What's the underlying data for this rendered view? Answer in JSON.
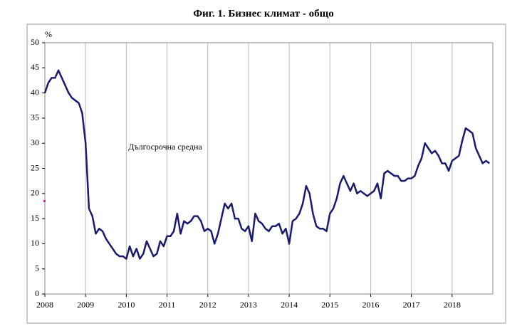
{
  "chart_data": {
    "type": "line",
    "title": "Фиг. 1. Бизнес климат - общо",
    "y_label": "%",
    "annotation": "Дългосрочна средна",
    "average": 18.5,
    "average_color": "#e0208a",
    "categories": [
      "2008",
      null,
      null,
      null,
      null,
      null,
      null,
      null,
      null,
      null,
      null,
      null,
      "2009",
      null,
      null,
      null,
      null,
      null,
      null,
      null,
      null,
      null,
      null,
      null,
      "2010",
      null,
      null,
      null,
      null,
      null,
      null,
      null,
      null,
      null,
      null,
      null,
      "2011",
      null,
      null,
      null,
      null,
      null,
      null,
      null,
      null,
      null,
      null,
      null,
      "2012",
      null,
      null,
      null,
      null,
      null,
      null,
      null,
      null,
      null,
      null,
      null,
      "2013",
      null,
      null,
      null,
      null,
      null,
      null,
      null,
      null,
      null,
      null,
      null,
      "2014",
      null,
      null,
      null,
      null,
      null,
      null,
      null,
      null,
      null,
      null,
      null,
      "2015",
      null,
      null,
      null,
      null,
      null,
      null,
      null,
      null,
      null,
      null,
      null,
      "2016",
      null,
      null,
      null,
      null,
      null,
      null,
      null,
      null,
      null,
      null,
      null,
      "2017",
      null,
      null,
      null,
      null,
      null,
      null,
      null,
      null,
      null,
      null,
      null,
      "2018",
      null,
      null,
      null,
      null,
      null,
      null,
      null,
      null,
      null,
      null,
      null
    ],
    "series": [
      {
        "color": "#1a1a6e",
        "values": [
          40,
          42,
          43,
          43,
          44.5,
          43,
          41.5,
          40,
          39,
          38.5,
          38,
          36,
          30,
          17,
          15.5,
          12,
          13,
          12.5,
          11,
          10,
          9,
          8,
          7.5,
          7.5,
          7,
          9.5,
          7.5,
          9,
          7,
          8,
          10.5,
          9,
          7.5,
          8,
          10.5,
          9.5,
          11.5,
          11.5,
          12.5,
          16,
          12,
          14.5,
          14,
          14.5,
          15.5,
          15.5,
          14.5,
          12.5,
          13,
          12.5,
          10,
          12,
          15,
          18,
          17,
          18,
          15,
          15,
          13,
          12.5,
          13.5,
          10.5,
          16,
          14.5,
          14,
          13,
          12.5,
          13.5,
          13.5,
          14,
          12,
          13,
          10,
          14.5,
          15,
          16,
          18,
          21.5,
          20,
          16,
          13.5,
          13,
          13,
          12.5,
          16,
          17,
          19,
          22,
          23.5,
          22,
          20.5,
          22,
          20,
          20.5,
          20,
          19.5,
          20,
          20.5,
          22,
          19,
          24,
          24.5,
          24,
          23.5,
          23.5,
          22.5,
          22.5,
          23,
          23,
          23.5,
          25.5,
          27,
          30,
          29,
          28,
          28.5,
          27.5,
          26,
          26,
          24.5,
          26.5,
          27,
          27.5,
          30.5,
          33,
          32.5,
          32,
          29,
          27.5,
          26,
          26.5,
          26
        ]
      }
    ],
    "ylim": [
      0,
      50
    ],
    "yticks": [
      0,
      5,
      10,
      15,
      20,
      25,
      30,
      35,
      40,
      45,
      50
    ],
    "grid": true
  }
}
